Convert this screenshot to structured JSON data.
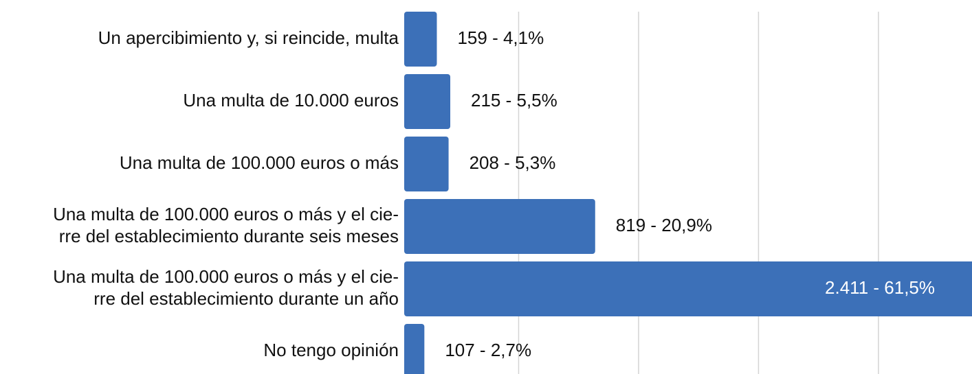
{
  "chart_data": {
    "type": "bar",
    "orientation": "horizontal",
    "categories": [
      [
        "Un apercibimiento y, si reincide, multa"
      ],
      [
        "Una multa de 10.000 euros"
      ],
      [
        "Una multa de 100.000 euros o más"
      ],
      [
        "Una multa de 100.000 euros o más y el cie-",
        "rre del establecimiento durante seis meses"
      ],
      [
        "Una multa de 100.000 euros o más y el cie-",
        "rre del establecimiento durante un año"
      ],
      [
        "No tengo opinión"
      ]
    ],
    "values": [
      159,
      215,
      208,
      819,
      2411,
      107
    ],
    "value_labels": [
      "159 -  4,1%",
      "215 -  5,5%",
      "208 -  5,3%",
      "819 -  20,9%",
      "2.411 -  61,5%",
      "107 -  2,7%"
    ],
    "color": "#3c70b8",
    "xlim": [
      0,
      2390
    ],
    "xticks": [
      500,
      1000,
      1500,
      2000
    ],
    "grid": true
  }
}
